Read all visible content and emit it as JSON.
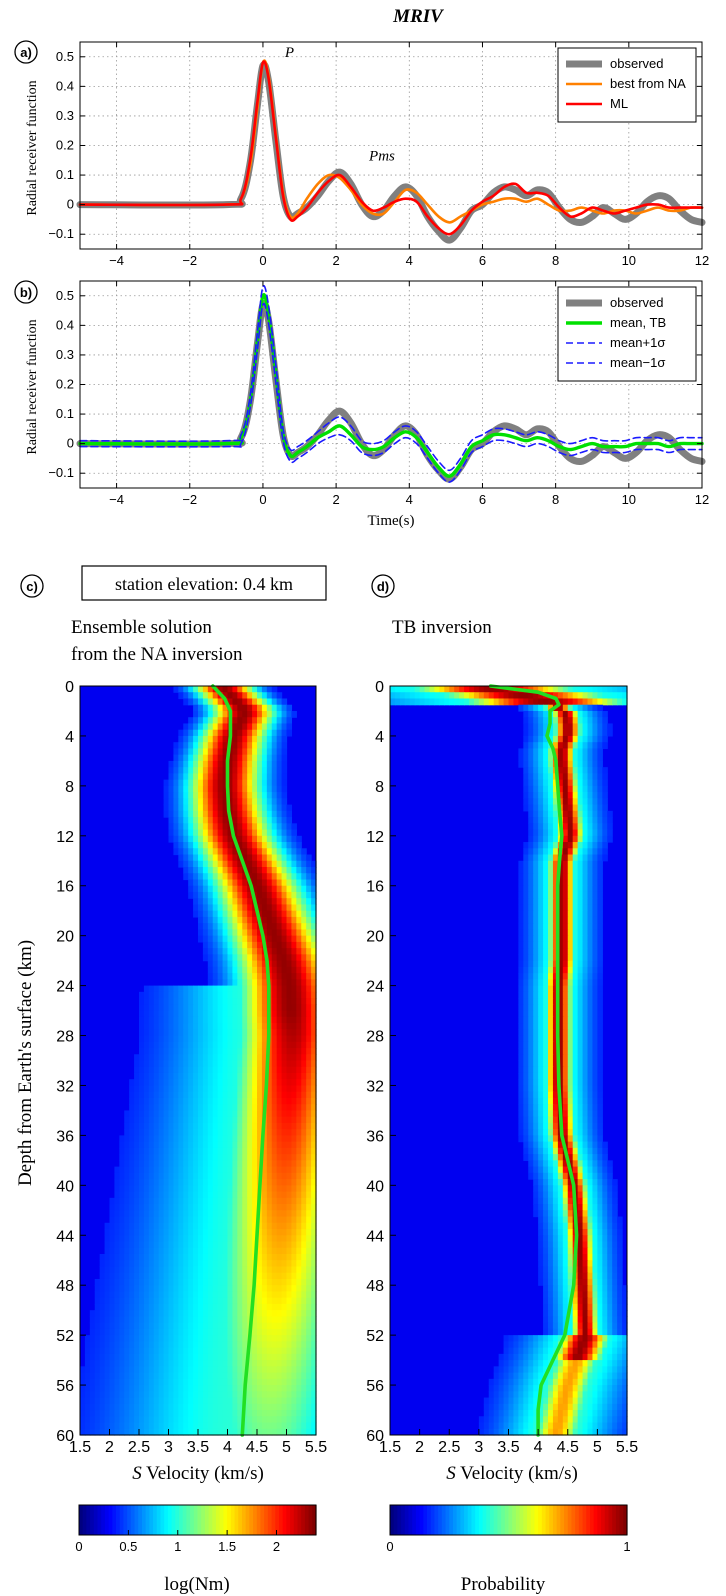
{
  "figure_title": "MRIV",
  "chart_data": [
    {
      "panel": "a)",
      "type": "line",
      "ylabel": "Radial receiver function",
      "xlim": [
        -5,
        12
      ],
      "ylim": [
        -0.15,
        0.55
      ],
      "x_ticks": [
        "−4",
        "−2",
        "0",
        "2",
        "4",
        "6",
        "8",
        "10",
        "12"
      ],
      "y_ticks": [
        "−0.1",
        "0",
        "0.1",
        "0.2",
        "0.3",
        "0.4",
        "0.5"
      ],
      "grid": true,
      "legend_position": "top-right",
      "annotations": [
        {
          "text": "P",
          "x": 0.6,
          "y": 0.5
        },
        {
          "text": "Pms",
          "x": 2.9,
          "y": 0.15
        }
      ],
      "series": [
        {
          "name": "observed",
          "color": "#808080",
          "x": [
            -5,
            -1,
            -0.6,
            -0.35,
            -0.15,
            0,
            0.15,
            0.35,
            0.55,
            0.75,
            0.95,
            1.2,
            1.5,
            1.8,
            2.1,
            2.4,
            2.7,
            3.0,
            3.3,
            3.6,
            3.9,
            4.2,
            4.5,
            4.8,
            5.1,
            5.4,
            5.7,
            6.0,
            6.3,
            6.6,
            6.9,
            7.2,
            7.5,
            7.8,
            8.1,
            8.4,
            8.7,
            9.0,
            9.3,
            9.6,
            9.9,
            10.2,
            10.5,
            10.8,
            11.1,
            11.4,
            11.7,
            12
          ],
          "y": [
            0,
            0,
            0.02,
            0.14,
            0.34,
            0.47,
            0.42,
            0.22,
            0.03,
            -0.04,
            -0.03,
            -0.01,
            0.03,
            0.08,
            0.11,
            0.07,
            0.0,
            -0.04,
            -0.02,
            0.03,
            0.06,
            0.03,
            -0.04,
            -0.09,
            -0.12,
            -0.08,
            -0.02,
            0.0,
            0.04,
            0.06,
            0.05,
            0.03,
            0.05,
            0.04,
            -0.01,
            -0.05,
            -0.06,
            -0.04,
            -0.01,
            -0.03,
            -0.05,
            -0.03,
            0.01,
            0.03,
            0.02,
            -0.02,
            -0.05,
            -0.06
          ]
        },
        {
          "name": "best from NA",
          "color": "#ff8000",
          "x": [
            -5,
            -1,
            -0.6,
            -0.35,
            -0.15,
            0,
            0.15,
            0.35,
            0.55,
            0.75,
            0.95,
            1.2,
            1.5,
            1.8,
            2.1,
            2.4,
            2.7,
            3.0,
            3.3,
            3.6,
            3.9,
            4.2,
            4.5,
            4.8,
            5.1,
            5.4,
            5.7,
            6.0,
            6.3,
            6.6,
            6.9,
            7.2,
            7.5,
            7.8,
            8.1,
            8.4,
            8.7,
            9.0,
            9.3,
            9.6,
            9.9,
            10.2,
            10.5,
            10.8,
            11.1,
            11.4,
            11.7,
            12
          ],
          "y": [
            0,
            0,
            0.02,
            0.13,
            0.33,
            0.48,
            0.44,
            0.24,
            0.04,
            -0.04,
            -0.03,
            0.02,
            0.07,
            0.1,
            0.09,
            0.05,
            0.0,
            -0.03,
            -0.03,
            0.01,
            0.05,
            0.04,
            0.0,
            -0.04,
            -0.06,
            -0.04,
            -0.02,
            0.0,
            0.01,
            0.02,
            0.02,
            0.01,
            0.02,
            0.0,
            -0.02,
            -0.02,
            -0.01,
            -0.02,
            -0.03,
            -0.02,
            -0.02,
            -0.03,
            -0.02,
            -0.01,
            -0.02,
            -0.02,
            -0.01,
            -0.01
          ]
        },
        {
          "name": "ML",
          "color": "#ff0000",
          "x": [
            -5,
            -1,
            -0.6,
            -0.35,
            -0.15,
            0,
            0.15,
            0.35,
            0.55,
            0.75,
            0.95,
            1.2,
            1.5,
            1.8,
            2.1,
            2.4,
            2.7,
            3.0,
            3.3,
            3.6,
            3.9,
            4.2,
            4.5,
            4.8,
            5.1,
            5.4,
            5.7,
            6.0,
            6.3,
            6.6,
            6.9,
            7.2,
            7.5,
            7.8,
            8.1,
            8.4,
            8.7,
            9.0,
            9.3,
            9.6,
            9.9,
            10.2,
            10.5,
            10.8,
            11.1,
            11.4,
            11.7,
            12
          ],
          "y": [
            0,
            0,
            0.02,
            0.15,
            0.35,
            0.48,
            0.43,
            0.23,
            0.03,
            -0.05,
            -0.04,
            -0.01,
            0.04,
            0.08,
            0.1,
            0.06,
            0.01,
            -0.02,
            -0.01,
            0.01,
            0.02,
            0.01,
            -0.04,
            -0.08,
            -0.1,
            -0.07,
            -0.02,
            0.01,
            0.03,
            0.06,
            0.07,
            0.04,
            0.04,
            0.03,
            -0.01,
            -0.04,
            -0.03,
            -0.01,
            -0.02,
            -0.03,
            -0.02,
            -0.01,
            0.0,
            0.0,
            -0.01,
            -0.01,
            -0.01,
            -0.01
          ]
        }
      ]
    },
    {
      "panel": "b)",
      "type": "line",
      "ylabel": "Radial receiver function",
      "xlabel": "Time(s)",
      "xlim": [
        -5,
        12
      ],
      "ylim": [
        -0.15,
        0.55
      ],
      "x_ticks": [
        "−4",
        "−2",
        "0",
        "2",
        "4",
        "6",
        "8",
        "10",
        "12"
      ],
      "y_ticks": [
        "−0.1",
        "0",
        "0.1",
        "0.2",
        "0.3",
        "0.4",
        "0.5"
      ],
      "grid": true,
      "legend_position": "top-right",
      "series": [
        {
          "name": "observed",
          "color": "#808080",
          "x": [
            -5,
            -1,
            -0.6,
            -0.35,
            -0.15,
            0,
            0.15,
            0.35,
            0.55,
            0.75,
            0.95,
            1.2,
            1.5,
            1.8,
            2.1,
            2.4,
            2.7,
            3.0,
            3.3,
            3.6,
            3.9,
            4.2,
            4.5,
            4.8,
            5.1,
            5.4,
            5.7,
            6.0,
            6.3,
            6.6,
            6.9,
            7.2,
            7.5,
            7.8,
            8.1,
            8.4,
            8.7,
            9.0,
            9.3,
            9.6,
            9.9,
            10.2,
            10.5,
            10.8,
            11.1,
            11.4,
            11.7,
            12
          ],
          "y": [
            0,
            0,
            0.02,
            0.14,
            0.34,
            0.47,
            0.42,
            0.22,
            0.03,
            -0.04,
            -0.03,
            -0.01,
            0.03,
            0.08,
            0.11,
            0.07,
            0.0,
            -0.04,
            -0.02,
            0.03,
            0.06,
            0.03,
            -0.04,
            -0.09,
            -0.12,
            -0.08,
            -0.02,
            0.0,
            0.04,
            0.06,
            0.05,
            0.03,
            0.05,
            0.04,
            -0.01,
            -0.05,
            -0.06,
            -0.04,
            -0.01,
            -0.03,
            -0.05,
            -0.03,
            0.01,
            0.03,
            0.02,
            -0.02,
            -0.05,
            -0.06
          ]
        },
        {
          "name": "mean, TB",
          "color": "#00e000",
          "x": [
            -5,
            -1,
            -0.6,
            -0.35,
            -0.15,
            0,
            0.15,
            0.35,
            0.55,
            0.75,
            0.95,
            1.2,
            1.5,
            1.8,
            2.1,
            2.4,
            2.7,
            3.0,
            3.3,
            3.6,
            3.9,
            4.2,
            4.5,
            4.8,
            5.1,
            5.4,
            5.7,
            6.0,
            6.3,
            6.6,
            6.9,
            7.2,
            7.5,
            7.8,
            8.1,
            8.4,
            8.7,
            9.0,
            9.3,
            9.6,
            9.9,
            10.2,
            10.5,
            10.8,
            11.1,
            11.4,
            11.7,
            12
          ],
          "y": [
            0,
            0,
            0.02,
            0.14,
            0.35,
            0.5,
            0.44,
            0.24,
            0.03,
            -0.04,
            -0.03,
            -0.01,
            0.02,
            0.04,
            0.06,
            0.03,
            -0.01,
            -0.02,
            -0.01,
            0.02,
            0.04,
            0.02,
            -0.03,
            -0.08,
            -0.11,
            -0.07,
            -0.01,
            0.01,
            0.03,
            0.03,
            0.02,
            0.01,
            0.02,
            0.01,
            -0.01,
            -0.02,
            -0.01,
            0.0,
            -0.01,
            -0.01,
            -0.01,
            0.0,
            0.0,
            0.0,
            -0.01,
            0.0,
            0.0,
            0.0
          ]
        },
        {
          "name": "mean+1σ",
          "color": "#1a1aff",
          "dashed": true,
          "x": [
            -5,
            -1,
            -0.6,
            -0.35,
            -0.15,
            0,
            0.15,
            0.35,
            0.55,
            0.75,
            0.95,
            1.2,
            1.5,
            1.8,
            2.1,
            2.4,
            2.7,
            3.0,
            3.3,
            3.6,
            3.9,
            4.2,
            4.5,
            4.8,
            5.1,
            5.4,
            5.7,
            6.0,
            6.3,
            6.6,
            6.9,
            7.2,
            7.5,
            7.8,
            8.1,
            8.4,
            8.7,
            9.0,
            9.3,
            9.6,
            9.9,
            10.2,
            10.5,
            10.8,
            11.1,
            11.4,
            11.7,
            12
          ],
          "y": [
            0.01,
            0.01,
            0.03,
            0.16,
            0.38,
            0.53,
            0.47,
            0.27,
            0.05,
            -0.02,
            -0.01,
            0.01,
            0.04,
            0.07,
            0.09,
            0.06,
            0.01,
            0.0,
            0.01,
            0.04,
            0.06,
            0.04,
            -0.01,
            -0.06,
            -0.09,
            -0.05,
            0.01,
            0.03,
            0.05,
            0.05,
            0.04,
            0.03,
            0.04,
            0.03,
            0.01,
            0.0,
            0.01,
            0.02,
            0.01,
            0.01,
            0.01,
            0.02,
            0.02,
            0.02,
            0.01,
            0.02,
            0.02,
            0.02
          ]
        },
        {
          "name": "mean−1σ",
          "color": "#1a1aff",
          "dashed": true,
          "x": [
            -5,
            -1,
            -0.6,
            -0.35,
            -0.15,
            0,
            0.15,
            0.35,
            0.55,
            0.75,
            0.95,
            1.2,
            1.5,
            1.8,
            2.1,
            2.4,
            2.7,
            3.0,
            3.3,
            3.6,
            3.9,
            4.2,
            4.5,
            4.8,
            5.1,
            5.4,
            5.7,
            6.0,
            6.3,
            6.6,
            6.9,
            7.2,
            7.5,
            7.8,
            8.1,
            8.4,
            8.7,
            9.0,
            9.3,
            9.6,
            9.9,
            10.2,
            10.5,
            10.8,
            11.1,
            11.4,
            11.7,
            12
          ],
          "y": [
            -0.01,
            -0.01,
            0.0,
            0.12,
            0.32,
            0.47,
            0.41,
            0.21,
            0.01,
            -0.06,
            -0.05,
            -0.03,
            0.0,
            0.02,
            0.03,
            0.01,
            -0.03,
            -0.04,
            -0.03,
            0.0,
            0.02,
            0.0,
            -0.05,
            -0.1,
            -0.13,
            -0.09,
            -0.03,
            -0.01,
            0.01,
            0.01,
            0.0,
            -0.01,
            0.0,
            -0.01,
            -0.03,
            -0.04,
            -0.03,
            -0.02,
            -0.03,
            -0.03,
            -0.03,
            -0.02,
            -0.02,
            -0.02,
            -0.03,
            -0.02,
            -0.02,
            -0.02
          ]
        }
      ]
    },
    {
      "panel": "c)",
      "type": "heatmap",
      "title_lines": [
        "Ensemble solution",
        "from the NA inversion"
      ],
      "inset_label": "station elevation: 0.4 km",
      "xlabel_italic": "S",
      "xlabel_rest": " Velocity (km/s)",
      "ylabel": "Depth from Earth's surface (km)",
      "xlim": [
        1.5,
        5.5
      ],
      "ylim": [
        0,
        60
      ],
      "x_ticks": [
        "1.5",
        "2",
        "2.5",
        "3",
        "3.5",
        "4",
        "4.5",
        "5",
        "5.5"
      ],
      "y_ticks": [
        "0",
        "4",
        "8",
        "12",
        "16",
        "20",
        "24",
        "28",
        "32",
        "36",
        "40",
        "44",
        "48",
        "52",
        "56",
        "60"
      ],
      "colorbar_label": "log(Nm)",
      "colorbar_ticks": [
        "0",
        "0.5",
        "1",
        "1.5",
        "2"
      ],
      "colorbar_range": [
        0,
        2.4
      ],
      "ridge": {
        "depth": [
          0,
          1,
          2,
          3,
          4,
          6,
          8,
          10,
          12,
          14,
          16,
          18,
          20,
          22,
          24,
          28,
          32,
          36,
          40,
          44,
          48,
          52,
          56,
          60
        ],
        "velocity": [
          3.9,
          4.1,
          4.3,
          4.2,
          4.1,
          4.0,
          3.95,
          4.0,
          4.1,
          4.3,
          4.5,
          4.65,
          4.8,
          4.95,
          5.05,
          5.1,
          5.05,
          5.0,
          4.95,
          4.9,
          4.85,
          4.8,
          4.75,
          4.7
        ]
      },
      "mean_profile": {
        "depth": [
          0,
          1,
          2,
          4,
          6,
          8,
          10,
          12,
          14,
          16,
          18,
          20,
          22,
          24,
          28,
          32,
          36,
          40,
          44,
          48,
          52,
          56,
          60
        ],
        "velocity": [
          3.75,
          3.95,
          4.05,
          4.05,
          4.0,
          4.0,
          4.02,
          4.1,
          4.25,
          4.4,
          4.5,
          4.6,
          4.67,
          4.7,
          4.7,
          4.66,
          4.6,
          4.55,
          4.5,
          4.45,
          4.38,
          4.3,
          4.25
        ]
      }
    },
    {
      "panel": "d)",
      "type": "heatmap",
      "title_lines": [
        "TB inversion"
      ],
      "xlabel_italic": "S",
      "xlabel_rest": " Velocity (km/s)",
      "xlim": [
        1.5,
        5.5
      ],
      "ylim": [
        0,
        60
      ],
      "x_ticks": [
        "1.5",
        "2",
        "2.5",
        "3",
        "3.5",
        "4",
        "4.5",
        "5",
        "5.5"
      ],
      "y_ticks": [
        "0",
        "4",
        "8",
        "12",
        "16",
        "20",
        "24",
        "28",
        "32",
        "36",
        "40",
        "44",
        "48",
        "52",
        "56",
        "60"
      ],
      "colorbar_label": "Probability",
      "colorbar_ticks": [
        "0",
        "1"
      ],
      "colorbar_range": [
        0,
        1
      ],
      "ridge": {
        "depth": [
          0,
          1,
          2,
          3,
          4,
          5,
          6,
          8,
          10,
          12,
          14,
          16,
          18,
          20,
          22,
          24,
          28,
          32,
          36,
          38,
          40,
          44,
          48,
          52,
          56,
          60
        ],
        "velocity": [
          3.0,
          4.0,
          4.45,
          4.5,
          4.5,
          4.4,
          4.4,
          4.45,
          4.5,
          4.55,
          4.4,
          4.4,
          4.4,
          4.4,
          4.4,
          4.35,
          4.35,
          4.35,
          4.4,
          4.5,
          4.6,
          4.7,
          4.75,
          4.8,
          4.5,
          4.3
        ]
      },
      "mean_profile": {
        "depth": [
          0,
          0.5,
          1,
          1.5,
          2,
          3,
          4,
          5,
          6,
          8,
          10,
          12,
          14,
          16,
          20,
          24,
          28,
          32,
          36,
          38,
          40,
          44,
          48,
          52,
          54,
          56,
          58,
          60
        ],
        "velocity": [
          3.2,
          4.0,
          4.3,
          4.35,
          4.2,
          4.2,
          4.15,
          4.25,
          4.3,
          4.33,
          4.36,
          4.4,
          4.36,
          4.33,
          4.33,
          4.33,
          4.33,
          4.35,
          4.4,
          4.5,
          4.6,
          4.65,
          4.6,
          4.45,
          4.25,
          4.05,
          4.0,
          4.0
        ]
      }
    }
  ]
}
